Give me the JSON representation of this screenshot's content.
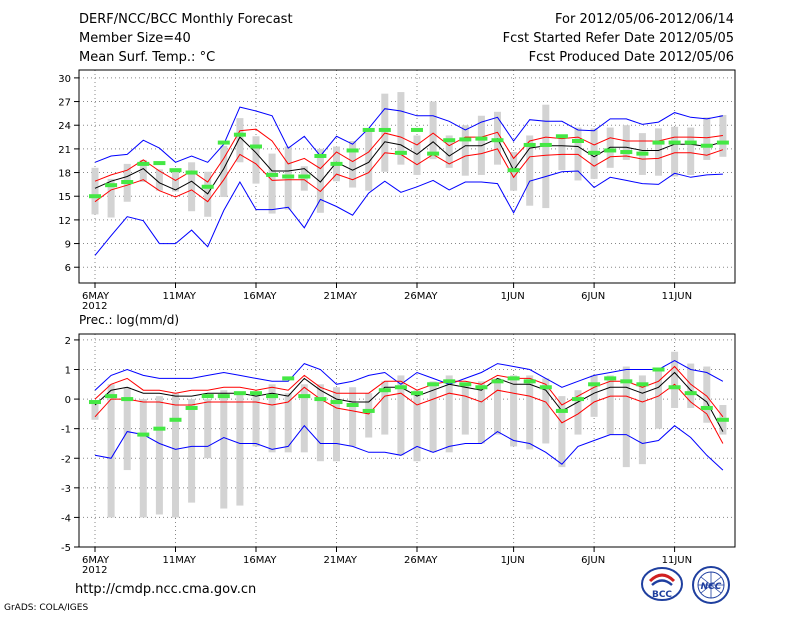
{
  "header": {
    "title": "DERF/NCC/BCC Monthly Forecast",
    "member_size": "Member Size=40",
    "variable": "Mean Surf. Temp.: °C",
    "period": "For 2012/05/06-2012/06/14",
    "fcst_started": "Fcst Started Refer Date 2012/05/05",
    "fcst_produced": "Fcst Produced Date 2012/05/06"
  },
  "footer": {
    "url": "http://cmdp.ncc.cma.gov.cn",
    "grads": "GrADS: COLA/IGES"
  },
  "logos": {
    "bcc": "BCC",
    "ncc": "NCC"
  },
  "colors": {
    "envelope": "#0000ff",
    "quartile": "#ff0000",
    "mean": "#000000",
    "bar": "#d3d3d3",
    "marker": "#44e844",
    "grid": "#888888"
  },
  "chart_data": [
    {
      "type": "line",
      "ylabel": "Mean Surf. Temp.: °C",
      "ylim": [
        4,
        31
      ],
      "yticks": [
        6,
        9,
        12,
        15,
        18,
        21,
        24,
        27,
        30
      ],
      "xtick_labels": [
        {
          "day": 0,
          "label": "6MAY",
          "year": "2012"
        },
        {
          "day": 5,
          "label": "11MAY"
        },
        {
          "day": 10,
          "label": "16MAY"
        },
        {
          "day": 15,
          "label": "21MAY"
        },
        {
          "day": 20,
          "label": "26MAY"
        },
        {
          "day": 26,
          "label": "1JUN"
        },
        {
          "day": 31,
          "label": "6JUN"
        },
        {
          "day": 36,
          "label": "11JUN"
        }
      ],
      "max": [
        19.3,
        20.1,
        20.3,
        22.1,
        21.1,
        19.3,
        20.1,
        19.3,
        21.6,
        26.3,
        25.8,
        25.2,
        21.1,
        22.6,
        20.1,
        22.6,
        21.6,
        23.6,
        26.1,
        25.8,
        25.2,
        25.2,
        24.5,
        23.4,
        24.4,
        25.0,
        22.0,
        24.7,
        24.5,
        24.5,
        23.4,
        23.3,
        24.8,
        24.8,
        24.1,
        24.4,
        25.6,
        25.0,
        24.8,
        25.2
      ],
      "p75": [
        16.9,
        17.7,
        18.3,
        19.6,
        18.2,
        17.0,
        18.2,
        16.8,
        19.8,
        23.3,
        23.5,
        22.0,
        19.1,
        19.8,
        18.5,
        20.6,
        19.4,
        20.6,
        23.0,
        22.5,
        21.5,
        23.0,
        21.4,
        22.5,
        22.5,
        23.1,
        19.8,
        22.0,
        22.5,
        22.3,
        22.5,
        21.5,
        22.4,
        22.0,
        22.0,
        22.0,
        22.5,
        22.5,
        22.4,
        22.7
      ],
      "mean": [
        16.0,
        16.9,
        17.5,
        18.5,
        16.7,
        15.8,
        16.9,
        15.3,
        18.5,
        22.5,
        20.5,
        18.2,
        18.2,
        18.5,
        16.8,
        19.3,
        18.3,
        19.3,
        21.9,
        21.5,
        20.3,
        21.9,
        20.1,
        21.4,
        21.4,
        22.3,
        18.3,
        21.1,
        21.4,
        21.4,
        21.3,
        20.0,
        21.2,
        21.2,
        20.8,
        20.8,
        21.6,
        21.6,
        21.3,
        21.9
      ],
      "p25": [
        14.3,
        15.8,
        16.4,
        17.1,
        15.7,
        14.9,
        15.8,
        14.3,
        17.1,
        20.3,
        19.1,
        17.0,
        17.1,
        17.1,
        15.6,
        17.8,
        17.1,
        18.0,
        20.5,
        20.3,
        19.0,
        20.3,
        19.1,
        20.1,
        20.4,
        21.0,
        17.4,
        20.0,
        20.2,
        20.3,
        20.3,
        18.8,
        20.0,
        20.1,
        19.7,
        19.8,
        20.5,
        20.5,
        20.2,
        20.9
      ],
      "min": [
        7.5,
        10.0,
        12.4,
        11.9,
        9.0,
        9.0,
        10.7,
        8.6,
        13.2,
        16.8,
        13.3,
        13.3,
        13.6,
        11.0,
        14.6,
        13.7,
        12.6,
        15.4,
        16.9,
        15.5,
        16.2,
        17.0,
        15.8,
        16.8,
        16.8,
        16.6,
        12.9,
        16.9,
        17.5,
        18.1,
        18.2,
        16.1,
        17.4,
        17.0,
        16.6,
        16.5,
        17.9,
        17.4,
        17.7,
        17.8
      ],
      "bar_hi": [
        18.6,
        17.2,
        19.1,
        19.6,
        18.4,
        18.3,
        19.3,
        18.1,
        21.4,
        24.9,
        22.6,
        20.4,
        21.3,
        18.8,
        21.0,
        21.3,
        22.0,
        23.6,
        28.0,
        28.2,
        22.7,
        27.0,
        22.7,
        24.0,
        25.2,
        25.7,
        20.6,
        22.7,
        26.6,
        22.4,
        23.7,
        23.6,
        23.7,
        24.0,
        23.0,
        23.6,
        23.8,
        23.7,
        25.0,
        25.3
      ],
      "bar_lo": [
        12.7,
        12.3,
        14.3,
        16.8,
        15.7,
        15.6,
        13.1,
        12.4,
        14.9,
        19.3,
        16.6,
        12.8,
        13.3,
        15.7,
        12.9,
        16.9,
        16.1,
        15.7,
        18.1,
        19.0,
        17.7,
        19.7,
        18.6,
        17.6,
        17.7,
        19.0,
        15.7,
        13.8,
        13.5,
        18.3,
        17.0,
        17.2,
        18.6,
        19.6,
        17.7,
        17.6,
        17.5,
        17.7,
        19.6,
        20.0
      ],
      "marker": [
        15.0,
        16.4,
        16.8,
        19.1,
        19.2,
        18.3,
        18.0,
        16.2,
        21.8,
        22.8,
        21.3,
        17.7,
        17.5,
        17.5,
        20.1,
        19.1,
        20.8,
        23.4,
        23.4,
        20.5,
        23.4,
        20.4,
        22.1,
        22.2,
        22.3,
        22.1,
        18.3,
        21.5,
        21.5,
        22.6,
        22.0,
        20.5,
        20.8,
        20.6,
        20.4,
        21.8,
        21.8,
        21.8,
        21.4,
        21.8
      ]
    },
    {
      "type": "line",
      "ylabel": "Prec.: log(mm/d)",
      "ylim": [
        -5,
        2.2
      ],
      "yticks": [
        -5,
        -4,
        -3,
        -2,
        -1,
        0,
        1,
        2
      ],
      "xtick_labels": [
        {
          "day": 0,
          "label": "6MAY",
          "year": "2012"
        },
        {
          "day": 5,
          "label": "11MAY"
        },
        {
          "day": 10,
          "label": "16MAY"
        },
        {
          "day": 15,
          "label": "21MAY"
        },
        {
          "day": 20,
          "label": "26MAY"
        },
        {
          "day": 26,
          "label": "1JUN"
        },
        {
          "day": 31,
          "label": "6JUN"
        },
        {
          "day": 36,
          "label": "11JUN"
        }
      ],
      "max": [
        0.3,
        0.8,
        1.0,
        0.8,
        0.7,
        0.7,
        0.7,
        0.8,
        0.9,
        0.8,
        0.7,
        0.6,
        0.6,
        1.2,
        1.0,
        0.5,
        0.6,
        0.8,
        0.9,
        0.5,
        0.9,
        0.7,
        0.5,
        0.7,
        0.9,
        1.2,
        1.1,
        1.0,
        0.7,
        0.4,
        0.6,
        0.8,
        0.9,
        1.0,
        1.0,
        1.0,
        1.3,
        1.0,
        0.9,
        0.6
      ],
      "p75": [
        0.0,
        0.5,
        0.7,
        0.3,
        0.3,
        0.2,
        0.3,
        0.3,
        0.4,
        0.4,
        0.3,
        0.4,
        0.3,
        0.8,
        0.4,
        0.2,
        0.2,
        0.2,
        0.6,
        0.6,
        0.3,
        0.5,
        0.6,
        0.6,
        0.5,
        0.8,
        0.7,
        0.7,
        0.5,
        -0.2,
        0.1,
        0.4,
        0.6,
        0.6,
        0.4,
        0.6,
        1.1,
        0.5,
        0.1,
        -0.6
      ],
      "mean": [
        -0.2,
        0.3,
        0.4,
        0.2,
        0.2,
        0.1,
        0.1,
        0.2,
        0.2,
        0.2,
        0.1,
        0.2,
        0.1,
        0.7,
        0.3,
        0.0,
        -0.1,
        -0.1,
        0.4,
        0.4,
        0.1,
        0.3,
        0.5,
        0.4,
        0.3,
        0.7,
        0.5,
        0.5,
        0.3,
        -0.4,
        -0.1,
        0.2,
        0.4,
        0.4,
        0.2,
        0.4,
        0.9,
        0.3,
        -0.1,
        -1.1
      ],
      "p25": [
        -0.6,
        0.0,
        0.0,
        -0.1,
        -0.1,
        -0.2,
        -0.2,
        -0.1,
        -0.1,
        -0.1,
        -0.1,
        -0.2,
        -0.1,
        0.4,
        0.0,
        -0.3,
        -0.4,
        -0.5,
        0.1,
        0.2,
        -0.2,
        0.0,
        0.2,
        0.1,
        -0.1,
        0.3,
        0.2,
        0.1,
        -0.1,
        -0.8,
        -0.5,
        -0.1,
        0.1,
        0.1,
        -0.1,
        0.1,
        0.5,
        -0.1,
        -0.5,
        -1.5
      ],
      "min": [
        -1.9,
        -2.0,
        -1.1,
        -1.2,
        -1.5,
        -1.7,
        -1.6,
        -1.6,
        -1.3,
        -1.5,
        -1.5,
        -1.7,
        -1.6,
        -0.9,
        -1.5,
        -1.5,
        -1.6,
        -1.8,
        -1.8,
        -1.9,
        -1.6,
        -1.8,
        -1.6,
        -1.5,
        -1.5,
        -1.1,
        -1.4,
        -1.5,
        -1.8,
        -2.2,
        -1.6,
        -1.4,
        -1.2,
        -1.2,
        -1.5,
        -1.4,
        -0.9,
        -1.3,
        -1.9,
        -2.4
      ],
      "bar_hi": [
        -0.1,
        0.5,
        0.4,
        0.0,
        0.1,
        0.2,
        0.0,
        0.0,
        0.3,
        0.2,
        0.1,
        0.5,
        0.2,
        0.5,
        0.5,
        0.4,
        0.4,
        0.2,
        0.6,
        0.8,
        0.3,
        0.6,
        0.8,
        0.5,
        0.6,
        0.7,
        0.8,
        0.8,
        0.7,
        0.1,
        0.3,
        0.8,
        0.8,
        1.1,
        0.8,
        1.0,
        1.6,
        1.2,
        1.1,
        -0.2
      ],
      "bar_lo": [
        -0.7,
        -4.0,
        -2.4,
        -4.0,
        -3.9,
        -4.0,
        -3.5,
        -2.0,
        -3.7,
        -3.6,
        -1.6,
        -1.8,
        -1.8,
        -1.8,
        -2.1,
        -2.1,
        -1.6,
        -1.3,
        -1.2,
        -1.9,
        -2.1,
        -1.8,
        -1.8,
        -1.2,
        -1.5,
        -1.2,
        -1.6,
        -1.7,
        -1.5,
        -2.3,
        -1.2,
        -0.6,
        -1.2,
        -2.3,
        -2.2,
        -1.0,
        -0.3,
        -0.3,
        -0.8,
        -1.2
      ],
      "marker": [
        -0.1,
        0.1,
        0.0,
        -1.2,
        -1.0,
        -0.7,
        -0.3,
        0.1,
        0.1,
        0.2,
        0.2,
        0.1,
        0.7,
        0.1,
        0.0,
        -0.1,
        -0.2,
        -0.4,
        0.3,
        0.4,
        0.2,
        0.5,
        0.6,
        0.5,
        0.4,
        0.6,
        0.7,
        0.6,
        0.4,
        -0.4,
        0.0,
        0.5,
        0.7,
        0.6,
        0.5,
        1.0,
        0.4,
        0.2,
        -0.3,
        -0.7
      ]
    }
  ]
}
